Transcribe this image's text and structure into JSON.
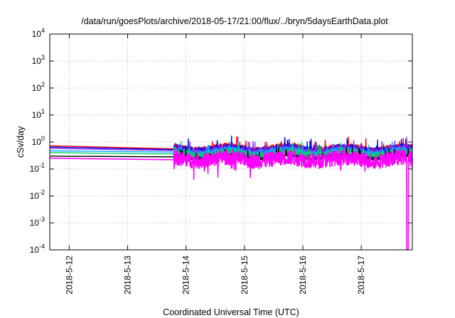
{
  "chart_data": {
    "type": "line",
    "title": "/data/run/goesPlots/archive/2018-05-17/21:00/flux/../bryn/5daysEarthData.plot",
    "xlabel": "Coordinated Universal Time (UTC)",
    "ylabel": "cSv/day",
    "yscale": "log",
    "ylim": [
      0.0001,
      10000
    ],
    "xlim": [
      "2018-05-11 16:00",
      "2018-05-17 21:00"
    ],
    "x_ticks": [
      "2018-5-12",
      "2018-5-13",
      "2018-5-14",
      "2018-5-15",
      "2018-5-16",
      "2018-5-17"
    ],
    "y_ticks": [
      {
        "base": "10",
        "exp": "-4"
      },
      {
        "base": "10",
        "exp": "-3"
      },
      {
        "base": "10",
        "exp": "-2"
      },
      {
        "base": "10",
        "exp": "-1"
      },
      {
        "base": "10",
        "exp": "0"
      },
      {
        "base": "10",
        "exp": "1"
      },
      {
        "base": "10",
        "exp": "2"
      },
      {
        "base": "10",
        "exp": "3"
      },
      {
        "base": "10",
        "exp": "4"
      }
    ],
    "grid": true,
    "data_gap": {
      "from": "2018-05-11 16:00",
      "to": "2018-05-13 19:00"
    },
    "series": [
      {
        "color": "#ff0000",
        "start": 0.72,
        "end": 0.56,
        "mean": 0.58,
        "amp": 0.13
      },
      {
        "color": "#0000ff",
        "start": 0.65,
        "end": 0.52,
        "mean": 0.54,
        "amp": 0.13
      },
      {
        "color": "#8a2be2",
        "start": 0.58,
        "end": 0.48,
        "mean": 0.49,
        "amp": 0.12
      },
      {
        "color": "#00aaff",
        "start": 0.47,
        "end": 0.42,
        "mean": 0.43,
        "amp": 0.11
      },
      {
        "color": "#00cc66",
        "start": 0.4,
        "end": 0.36,
        "mean": 0.37,
        "amp": 0.1
      },
      {
        "color": "#000000",
        "start": 0.3,
        "end": 0.28,
        "mean": 0.28,
        "amp": 0.06
      },
      {
        "color": "#ff00ff",
        "start": 0.25,
        "end": 0.22,
        "mean": 0.23,
        "amp": 0.28,
        "dropout": {
          "at": "2018-05-17 19:00",
          "value": 0.0001
        }
      }
    ]
  }
}
